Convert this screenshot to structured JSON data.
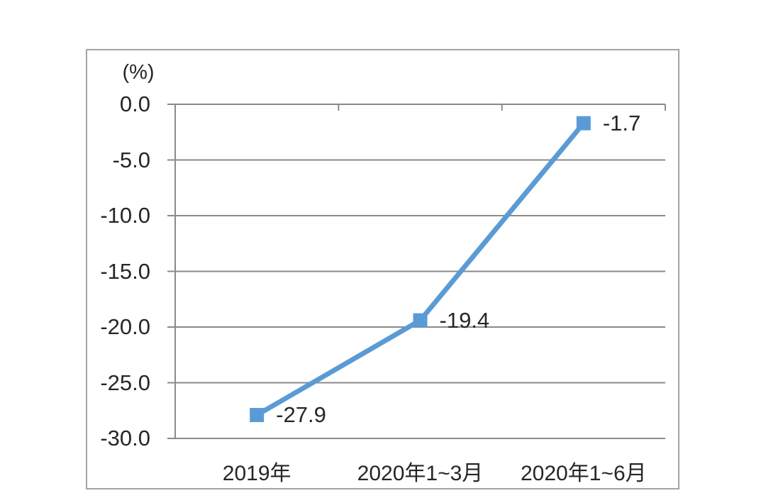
{
  "chart_data": {
    "type": "line",
    "title": "",
    "unit_label": "(%)",
    "categories": [
      "2019年",
      "2020年1~3月",
      "2020年1~6月"
    ],
    "series": [
      {
        "name": "growth-rate",
        "values": [
          -27.9,
          -19.4,
          -1.7
        ]
      }
    ],
    "point_labels": [
      "-27.9",
      "-19.4",
      "-1.7"
    ],
    "ytick_labels": [
      "0.0",
      "-5.0",
      "-10.0",
      "-15.0",
      "-20.0",
      "-25.0",
      "-30.0"
    ],
    "ylim": [
      -30,
      0
    ],
    "grid": true,
    "legend": "none",
    "marker": "square",
    "line_color": "#5b9bd5",
    "gridline_color": "#8a8a8a",
    "frame_color": "#a3a3a3",
    "text_color": "#262626",
    "background_color": "#ffffff"
  }
}
